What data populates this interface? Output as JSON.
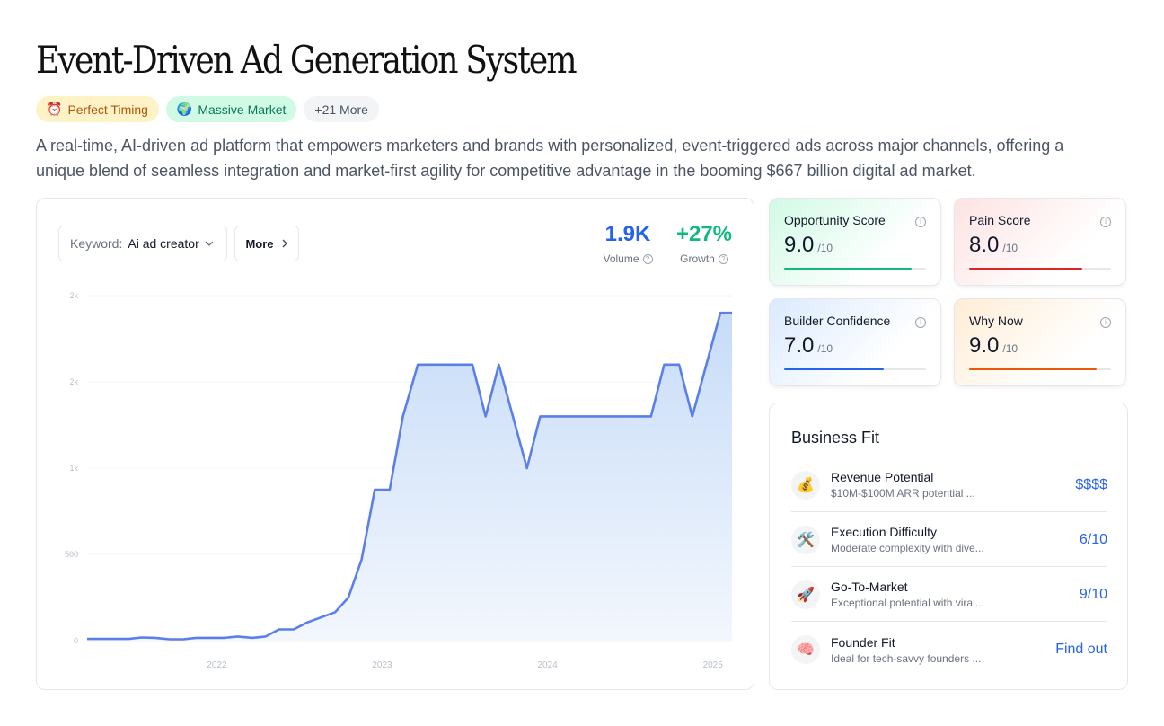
{
  "page": {
    "title": "Event-Driven Ad Generation System",
    "description": "A real-time, AI-driven ad platform that empowers marketers and brands with personalized, event-triggered ads across major channels, offering a unique blend of seamless integration and market-first agility for competitive advantage in the booming $667 billion digital ad market."
  },
  "tags": [
    {
      "icon": "⏰",
      "label": "Perfect Timing"
    },
    {
      "icon": "🌍",
      "label": "Massive Market"
    },
    {
      "label": "+21 More"
    }
  ],
  "chart_panel": {
    "keyword_label": "Keyword:",
    "keyword_value": "Ai ad creator",
    "more_label": "More",
    "volume_value": "1.9K",
    "volume_label": "Volume",
    "growth_value": "+27%",
    "growth_label": "Growth"
  },
  "chart_data": {
    "type": "area",
    "color": "#5b7fe8",
    "y_tick_labels": [
      "0",
      "500",
      "1k",
      "2k",
      "2k"
    ],
    "x_tick_labels": [
      "2022",
      "2023",
      "2024",
      "2025"
    ],
    "x_start": 2021.27,
    "x_end": 2025.17,
    "ylim": [
      0,
      2000
    ],
    "y_tick_values": [
      0,
      500,
      1000,
      1500,
      2000
    ],
    "x_tick_values": [
      2022,
      2023,
      2024,
      2025
    ],
    "points": [
      [
        2021.27,
        10
      ],
      [
        2021.52,
        10
      ],
      [
        2021.6,
        18
      ],
      [
        2021.68,
        16
      ],
      [
        2021.77,
        8
      ],
      [
        2021.85,
        8
      ],
      [
        2021.93,
        16
      ],
      [
        2022.1,
        16
      ],
      [
        2022.18,
        24
      ],
      [
        2022.27,
        16
      ],
      [
        2022.35,
        24
      ],
      [
        2022.43,
        65
      ],
      [
        2022.52,
        65
      ],
      [
        2022.6,
        105
      ],
      [
        2022.77,
        165
      ],
      [
        2022.85,
        250
      ],
      [
        2022.93,
        470
      ],
      [
        2023.01,
        875
      ],
      [
        2023.1,
        875
      ],
      [
        2023.18,
        1300
      ],
      [
        2023.27,
        1600
      ],
      [
        2023.6,
        1600
      ],
      [
        2023.68,
        1300
      ],
      [
        2023.76,
        1600
      ],
      [
        2023.93,
        1000
      ],
      [
        2024.01,
        1300
      ],
      [
        2024.68,
        1300
      ],
      [
        2024.76,
        1600
      ],
      [
        2024.85,
        1600
      ],
      [
        2024.93,
        1300
      ],
      [
        2025.1,
        1900
      ],
      [
        2025.17,
        1900
      ]
    ]
  },
  "scores": [
    {
      "title": "Opportunity Score",
      "value": "9.0",
      "max": "/10",
      "fraction": 0.9,
      "color": "#10b981"
    },
    {
      "title": "Pain Score",
      "value": "8.0",
      "max": "/10",
      "fraction": 0.8,
      "color": "#dc2626"
    },
    {
      "title": "Builder Confidence",
      "value": "7.0",
      "max": "/10",
      "fraction": 0.7,
      "color": "#2563eb"
    },
    {
      "title": "Why Now",
      "value": "9.0",
      "max": "/10",
      "fraction": 0.9,
      "color": "#ea580c"
    }
  ],
  "business_fit": {
    "title": "Business Fit",
    "rows": [
      {
        "icon": "💰",
        "name": "Revenue Potential",
        "sub": "$10M-$100M ARR potential ...",
        "value": "$$$$"
      },
      {
        "icon": "🛠️",
        "name": "Execution Difficulty",
        "sub": "Moderate complexity with dive...",
        "value": "6/10"
      },
      {
        "icon": "🚀",
        "name": "Go-To-Market",
        "sub": "Exceptional potential with viral...",
        "value": "9/10"
      },
      {
        "icon": "🧠",
        "name": "Founder Fit",
        "sub": "Ideal for tech-savvy founders ...",
        "value": "Find out"
      }
    ]
  }
}
